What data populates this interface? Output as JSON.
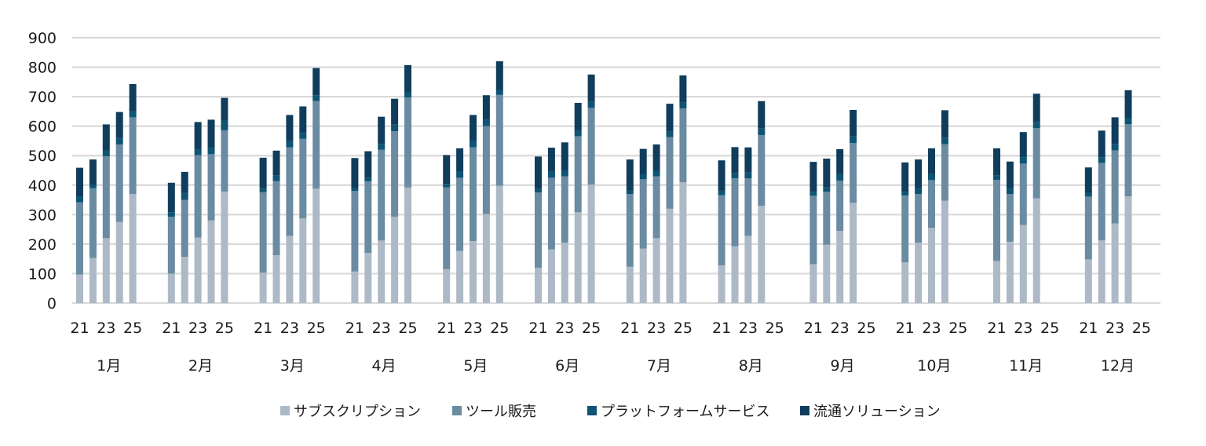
{
  "chart_data": {
    "type": "bar",
    "stacked": true,
    "title": "",
    "xlabel": "",
    "ylabel": "",
    "ylim": [
      0,
      900
    ],
    "yticks": [
      0,
      100,
      200,
      300,
      400,
      500,
      600,
      700,
      800,
      900
    ],
    "grid": true,
    "legend_position": "bottom",
    "months": [
      "1月",
      "2月",
      "3月",
      "4月",
      "5月",
      "6月",
      "7月",
      "8月",
      "9月",
      "10月",
      "11月",
      "12月"
    ],
    "year_labels": [
      "21",
      "23",
      "25"
    ],
    "bars_per_month": 5,
    "series": [
      {
        "name": "サブスクリプション",
        "color": "#adb9c6",
        "values": [
          [
            97,
            153,
            220,
            275,
            370
          ],
          [
            100,
            157,
            222,
            280,
            378
          ],
          [
            103,
            162,
            228,
            287,
            388
          ],
          [
            107,
            170,
            212,
            293,
            392
          ],
          [
            115,
            177,
            210,
            302,
            398
          ],
          [
            120,
            182,
            205,
            308,
            402
          ],
          [
            123,
            185,
            220,
            320,
            410
          ],
          [
            128,
            193,
            228,
            330,
            null
          ],
          [
            132,
            198,
            245,
            340,
            null
          ],
          [
            138,
            205,
            255,
            347,
            null
          ],
          [
            143,
            208,
            265,
            355,
            null
          ],
          [
            148,
            213,
            270,
            362,
            null
          ]
        ]
      },
      {
        "name": "ツール販売",
        "color": "#6a8ba1",
        "values": [
          [
            245,
            237,
            278,
            263,
            260
          ],
          [
            193,
            193,
            280,
            225,
            208
          ],
          [
            273,
            252,
            300,
            270,
            297
          ],
          [
            273,
            243,
            308,
            290,
            305
          ],
          [
            277,
            248,
            318,
            298,
            308
          ],
          [
            255,
            243,
            225,
            258,
            260
          ],
          [
            247,
            235,
            210,
            243,
            250
          ],
          [
            238,
            230,
            195,
            240,
            null
          ],
          [
            232,
            180,
            170,
            203,
            null
          ],
          [
            227,
            165,
            162,
            192,
            null
          ],
          [
            275,
            162,
            208,
            238,
            null
          ],
          [
            213,
            262,
            248,
            245,
            null
          ]
        ]
      },
      {
        "name": "プラットフォームサービス",
        "color": "#0e5474",
        "values": [
          [
            20,
            12,
            20,
            22,
            20
          ],
          [
            15,
            23,
            20,
            22,
            32
          ],
          [
            12,
            18,
            22,
            20,
            20
          ],
          [
            10,
            12,
            20,
            22,
            18
          ],
          [
            12,
            20,
            22,
            22,
            17
          ],
          [
            12,
            20,
            20,
            20,
            20
          ],
          [
            12,
            18,
            20,
            20,
            20
          ],
          [
            15,
            18,
            20,
            22,
            null
          ],
          [
            12,
            15,
            22,
            22,
            null
          ],
          [
            12,
            20,
            20,
            22,
            null
          ],
          [
            15,
            20,
            22,
            20,
            null
          ],
          [
            12,
            20,
            22,
            20,
            null
          ]
        ]
      },
      {
        "name": "流通ソリューション",
        "color": "#113d5c",
        "values": [
          [
            97,
            85,
            88,
            88,
            93
          ],
          [
            100,
            72,
            92,
            95,
            78
          ],
          [
            105,
            85,
            88,
            90,
            92
          ],
          [
            102,
            90,
            92,
            88,
            92
          ],
          [
            98,
            80,
            88,
            83,
            97
          ],
          [
            110,
            82,
            95,
            93,
            93
          ],
          [
            105,
            85,
            88,
            93,
            92
          ],
          [
            103,
            88,
            85,
            93,
            null
          ],
          [
            103,
            97,
            85,
            90,
            null
          ],
          [
            100,
            97,
            88,
            93,
            null
          ],
          [
            92,
            90,
            85,
            97,
            null
          ],
          [
            87,
            90,
            90,
            95,
            null
          ]
        ]
      }
    ]
  }
}
